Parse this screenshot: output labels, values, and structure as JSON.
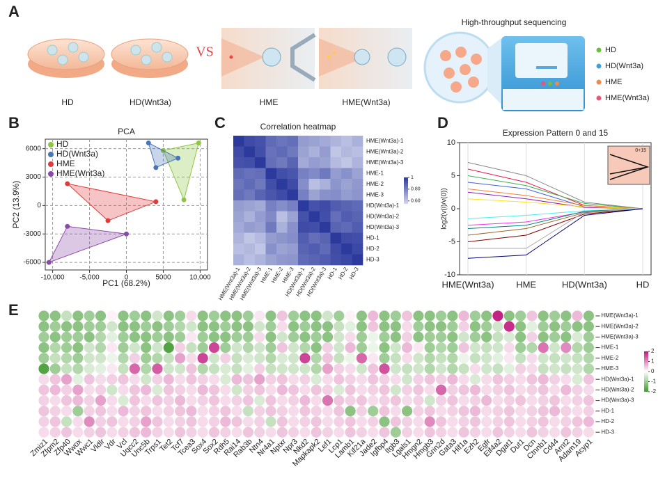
{
  "panel_labels": [
    "A",
    "B",
    "C",
    "D",
    "E"
  ],
  "schematic": {
    "groups": [
      "HD",
      "HD(Wnt3a)",
      "HME",
      "HME(Wnt3a)"
    ],
    "vs": "VS",
    "sequencing_title": "High-throughput sequencing",
    "legend": [
      {
        "name": "HD",
        "color": "#6cbf3a"
      },
      {
        "name": "HD(Wnt3a)",
        "color": "#3ea0d8"
      },
      {
        "name": "HME",
        "color": "#f08a4b"
      },
      {
        "name": "HME(Wnt3a)",
        "color": "#e8557a"
      }
    ]
  },
  "chart_data": [
    {
      "type": "scatter",
      "title": "PCA",
      "x_label": "PC1 (68.2%)",
      "y_label": "PC2 (13.9%)",
      "xlim": [
        -11000,
        11000
      ],
      "ylim": [
        -6800,
        7000
      ],
      "xticks": [
        {
          "value": -10000,
          "label": "-10,000"
        },
        {
          "value": -5000,
          "label": "-5,000"
        },
        0,
        5000,
        {
          "value": 10000,
          "label": "10,000"
        }
      ],
      "yticks": [
        -6000,
        -3000,
        0,
        3000,
        6000
      ],
      "grid": "dashed",
      "legend": "top-left",
      "series": [
        {
          "name": "HD",
          "color": "#8cc63f",
          "x": [
            5000,
            9800,
            7800
          ],
          "values": [
            5800,
            6600,
            600
          ]
        },
        {
          "name": "HD(Wnt3a)",
          "color": "#4a74b8",
          "x": [
            3000,
            7000,
            4000
          ],
          "values": [
            6600,
            5000,
            4000
          ]
        },
        {
          "name": "HME",
          "color": "#e03c3c",
          "x": [
            -8000,
            -2500,
            4000
          ],
          "values": [
            2300,
            -1600,
            400
          ]
        },
        {
          "name": "HME(Wnt3a)",
          "color": "#8a4aa8",
          "x": [
            -8000,
            -10500,
            0
          ],
          "values": [
            -2200,
            -6000,
            -3000
          ]
        }
      ]
    },
    {
      "type": "heatmap",
      "title": "Correlation heatmap",
      "categories": [
        "HME(Wnt3a)-1",
        "HME(Wnt3a)-2",
        "HME(Wnt3a)-3",
        "HME-1",
        "HME-2",
        "HME-3",
        "HD(Wnt3a)-1",
        "HD(Wnt3a)-2",
        "HD(Wnt3a)-3",
        "HD-1",
        "HD-2",
        "HD-3"
      ],
      "values": [
        [
          1,
          0.95,
          0.93,
          0.86,
          0.83,
          0.85,
          0.72,
          0.7,
          0.68,
          0.65,
          0.62,
          0.66
        ],
        [
          0.95,
          1,
          0.94,
          0.84,
          0.86,
          0.82,
          0.7,
          0.66,
          0.72,
          0.6,
          0.64,
          0.62
        ],
        [
          0.93,
          0.94,
          1,
          0.85,
          0.82,
          0.88,
          0.68,
          0.72,
          0.7,
          0.63,
          0.6,
          0.65
        ],
        [
          0.86,
          0.84,
          0.85,
          1,
          0.94,
          0.92,
          0.8,
          0.77,
          0.82,
          0.72,
          0.75,
          0.7
        ],
        [
          0.83,
          0.86,
          0.82,
          0.94,
          1,
          0.95,
          0.76,
          0.62,
          0.66,
          0.74,
          0.7,
          0.73
        ],
        [
          0.85,
          0.82,
          0.88,
          0.92,
          0.95,
          1,
          0.8,
          0.7,
          0.75,
          0.76,
          0.72,
          0.74
        ],
        [
          0.72,
          0.7,
          0.68,
          0.8,
          0.76,
          0.8,
          1,
          0.93,
          0.95,
          0.9,
          0.88,
          0.86
        ],
        [
          0.7,
          0.66,
          0.72,
          0.77,
          0.62,
          0.7,
          0.93,
          1,
          0.94,
          0.85,
          0.9,
          0.88
        ],
        [
          0.68,
          0.72,
          0.7,
          0.82,
          0.66,
          0.75,
          0.95,
          0.94,
          1,
          0.88,
          0.86,
          0.9
        ],
        [
          0.65,
          0.6,
          0.63,
          0.72,
          0.74,
          0.76,
          0.9,
          0.85,
          0.88,
          1,
          0.95,
          0.94
        ],
        [
          0.62,
          0.64,
          0.6,
          0.75,
          0.7,
          0.72,
          0.88,
          0.9,
          0.86,
          0.95,
          1,
          0.96
        ],
        [
          0.66,
          0.62,
          0.65,
          0.7,
          0.73,
          0.74,
          0.86,
          0.88,
          0.9,
          0.94,
          0.96,
          1
        ]
      ],
      "clim": [
        0.55,
        1
      ],
      "colorbar_ticks": [
        1,
        {
          "value": 0.8,
          "label": "0.80"
        },
        {
          "value": 0.6,
          "label": "0.60"
        }
      ],
      "colors": [
        "#d3d7ee",
        "#2c3a9e"
      ]
    },
    {
      "type": "line",
      "title": "Expression Pattern 0 and 15",
      "y_label": "log2(v(i)/v(0))",
      "categories": [
        "HME(Wnt3a)",
        "HME",
        "HD(Wnt3a)",
        "HD"
      ],
      "ylim": [
        -10,
        10
      ],
      "yticks": [
        -10,
        -5,
        0,
        5,
        10
      ],
      "inset_label": "0+15",
      "inset_color": "#f6c9b8",
      "series": [
        {
          "color": "#e6194b",
          "values": [
            6,
            4,
            0.5,
            0
          ]
        },
        {
          "color": "#3cb44b",
          "values": [
            5,
            3.5,
            0.8,
            0
          ]
        },
        {
          "color": "#4363d8",
          "values": [
            4,
            3,
            0.3,
            0
          ]
        },
        {
          "color": "#f58231",
          "values": [
            3,
            2,
            0.5,
            0
          ]
        },
        {
          "color": "#911eb4",
          "values": [
            2.5,
            1.5,
            0.2,
            0
          ]
        },
        {
          "color": "#888888",
          "values": [
            7,
            5,
            1,
            0
          ]
        },
        {
          "color": "#ffe119",
          "values": [
            1.5,
            1,
            0.3,
            0
          ]
        },
        {
          "color": "#46f0f0",
          "values": [
            -1.5,
            -1,
            -0.3,
            0
          ]
        },
        {
          "color": "#f032e6",
          "values": [
            -2.5,
            -2,
            -0.5,
            0
          ]
        },
        {
          "color": "#008080",
          "values": [
            -3,
            -2.5,
            -0.4,
            0
          ]
        },
        {
          "color": "#9a6324",
          "values": [
            -4,
            -3,
            -0.6,
            0
          ]
        },
        {
          "color": "#800000",
          "values": [
            -5,
            -4,
            -0.8,
            0
          ]
        },
        {
          "color": "#aaaaaa",
          "values": [
            -6,
            -6,
            -0.5,
            0
          ]
        },
        {
          "color": "#000075",
          "values": [
            -7.5,
            -7,
            -1,
            0
          ]
        }
      ]
    },
    {
      "type": "dot_heatmap",
      "categories": [
        "Zmiz1",
        "Zfpm2",
        "Zfp40",
        "Wwox",
        "Wwc1",
        "Vldlr",
        "Vdr",
        "Vcl",
        "Uqcc2",
        "Unc5b",
        "Trps1",
        "Tet2",
        "Tcf7",
        "Tcea3",
        "Sox4",
        "Sox2",
        "Rdh5",
        "Rai14",
        "Rab3b",
        "Ntn4",
        "Nr4a1",
        "Nptxr",
        "Npr3",
        "Nkd2",
        "Mapkapk2",
        "Lef1",
        "Lcp1",
        "Lamb1",
        "Kif21a",
        "Jade2",
        "Igfbp4",
        "Itgb3",
        "Lgals1",
        "Hmgn2",
        "Hmgb3",
        "Grin2d",
        "Gata3",
        "Hif1a",
        "Ezh2",
        "Egfr",
        "Eif4a2",
        "Dgat1",
        "Dut1",
        "Dcn",
        "Ctnnb1",
        "Cd44",
        "Arnt2",
        "Adam19",
        "Acyp1"
      ],
      "category_colors": [
        "#222",
        "#222",
        "#222",
        "#222",
        "#222",
        "#222",
        "#222",
        "#222",
        "#222",
        "#222",
        "#222",
        "#222",
        "#d62b3a",
        "#222",
        "#d62b3a",
        "#d62b3a",
        "#222",
        "#222",
        "#222",
        "#222",
        "#222",
        "#222",
        "#222",
        "#222",
        "#222",
        "#d62b3a",
        "#222",
        "#222",
        "#222",
        "#222",
        "#222",
        "#222",
        "#222",
        "#222",
        "#222",
        "#222",
        "#222",
        "#d62b3a",
        "#d62b3a",
        "#d62b3a",
        "#222",
        "#222",
        "#222",
        "#222",
        "#d62b3a",
        "#d62b3a",
        "#222",
        "#222",
        "#222"
      ],
      "rows": [
        "HME(Wnt3a)-1",
        "HME(Wnt3a)-2",
        "HME(Wnt3a)-3",
        "HME-1",
        "HME-2",
        "HME-3",
        "HD(Wnt3a)-1",
        "HD(Wnt3a)-2",
        "HD(Wnt3a)-3",
        "HD-1",
        "HD-2",
        "HD-3"
      ],
      "values": [
        [
          -1.2,
          -1.2,
          -0.6,
          -1.2,
          -1.0,
          -1.2,
          0.1,
          -1.2,
          -1.0,
          -1.2,
          -0.5,
          -1.2,
          -1.0,
          0.3,
          -1.2,
          -1.0,
          -1.2,
          -1.2,
          -1.0,
          0.2,
          -1.2,
          0.5,
          -1.0,
          -1.2,
          -1.2,
          -0.5,
          -1.0,
          0.1,
          -1.2,
          0.6,
          -1.2,
          -1.0,
          0.5,
          -1.2,
          -1.2,
          -1.0,
          -1.2,
          0.6,
          -1.0,
          -1.2,
          1.9,
          -1.2,
          -1.0,
          0.5,
          -1.2,
          -1.0,
          -1.2,
          0.6,
          -1.2
        ],
        [
          -1.2,
          -1.0,
          -1.2,
          -1.2,
          -1.0,
          -1.0,
          -0.5,
          -1.2,
          -1.2,
          -1.0,
          -1.2,
          -1.0,
          -0.8,
          -0.5,
          -1.2,
          -1.2,
          -1.0,
          -1.2,
          -1.2,
          -0.5,
          -1.0,
          0.3,
          -1.2,
          -1.0,
          -1.2,
          -1.2,
          -0.6,
          -0.3,
          -1.2,
          0.5,
          -1.2,
          -1.2,
          0.3,
          -1.0,
          -1.2,
          -1.2,
          -1.0,
          0.4,
          -1.2,
          -1.0,
          -0.5,
          1.8,
          -1.2,
          -0.3,
          -1.0,
          -1.2,
          -1.0,
          -1.2,
          -1.2
        ],
        [
          -1.0,
          -1.2,
          -1.0,
          -1.0,
          -1.2,
          -0.8,
          -0.3,
          -1.0,
          -1.2,
          -1.2,
          -1.0,
          -1.2,
          -1.0,
          0.2,
          -1.0,
          -1.2,
          -1.2,
          -1.0,
          -1.0,
          0.3,
          -1.2,
          -0.5,
          -1.0,
          -1.2,
          -1.0,
          -1.2,
          -0.5,
          0.3,
          -1.0,
          -0.2,
          -1.0,
          -1.2,
          0.4,
          -1.2,
          -1.0,
          -1.0,
          -1.2,
          -0.5,
          -1.0,
          -1.2,
          -0.6,
          -0.4,
          -1.2,
          0.4,
          -1.2,
          -1.0,
          -1.2,
          -0.4,
          -1.0
        ],
        [
          -1.2,
          -0.8,
          -1.0,
          -1.2,
          -0.5,
          -0.8,
          0.2,
          -1.0,
          -0.5,
          -1.2,
          -0.5,
          -1.8,
          0.4,
          -0.6,
          -1.0,
          1.6,
          -1.0,
          -0.5,
          -0.8,
          -0.5,
          -1.0,
          0.5,
          -0.5,
          -0.8,
          -1.2,
          0.4,
          -0.5,
          0.6,
          -1.0,
          -0.2,
          -1.2,
          -0.5,
          0.6,
          0.2,
          -1.0,
          -0.8,
          -1.0,
          0.5,
          -0.5,
          -0.6,
          -0.5,
          0.3,
          -1.0,
          -0.8,
          1.2,
          -0.5,
          1.0,
          -0.8,
          -1.0
        ],
        [
          -1.0,
          -0.6,
          -0.8,
          -1.0,
          -0.5,
          -0.5,
          -0.2,
          -0.8,
          0.4,
          -1.0,
          -0.8,
          -0.6,
          0.8,
          0.3,
          1.6,
          -0.5,
          0.4,
          -0.6,
          -0.4,
          -0.5,
          -0.8,
          -0.4,
          -0.5,
          1.6,
          -0.8,
          0.5,
          -0.6,
          -0.2,
          1.3,
          0.2,
          -1.0,
          -0.6,
          0.3,
          -0.5,
          -0.8,
          -0.6,
          -0.8,
          -0.2,
          -0.6,
          -0.5,
          -0.3,
          0.2,
          -0.6,
          0.3,
          -0.5,
          -0.6,
          -0.5,
          -0.6,
          -0.8
        ],
        [
          -1.8,
          -1.0,
          -0.6,
          -0.8,
          -0.4,
          -0.3,
          0.2,
          -0.6,
          1.3,
          -0.8,
          1.4,
          -0.5,
          -0.5,
          0.5,
          -0.8,
          -0.6,
          -0.4,
          -0.6,
          -0.3,
          0.4,
          -0.6,
          -0.5,
          -0.5,
          -0.5,
          -0.8,
          0.8,
          0.4,
          0.3,
          -0.5,
          0.5,
          1.5,
          -0.5,
          -0.6,
          -0.5,
          -0.8,
          -0.5,
          -0.8,
          -0.6,
          0.3,
          -0.5,
          -0.6,
          -0.3,
          0.4,
          0.3,
          -0.6,
          -0.5,
          -0.6,
          -0.5,
          -0.8
        ],
        [
          0.3,
          0.5,
          0.8,
          -0.3,
          0.5,
          0.3,
          0.4,
          0.5,
          0.3,
          -0.5,
          0.4,
          0.6,
          0.3,
          0.5,
          0.4,
          0.3,
          -0.4,
          0.6,
          0.5,
          0.8,
          0.4,
          0.5,
          0.3,
          0.4,
          -0.4,
          0.3,
          0.5,
          0.4,
          0.3,
          0.5,
          0.4,
          0.3,
          -0.5,
          0.4,
          0.5,
          0.4,
          0.6,
          0.3,
          -0.4,
          0.3,
          0.5,
          0.4,
          0.3,
          0.5,
          0.6,
          0.4,
          0.3,
          -0.4,
          0.5
        ],
        [
          0.5,
          0.6,
          0.4,
          0.8,
          0.3,
          0.4,
          -0.5,
          0.3,
          0.5,
          0.6,
          -0.4,
          0.5,
          0.4,
          0.3,
          0.6,
          0.5,
          0.3,
          -0.5,
          0.4,
          0.5,
          0.3,
          0.6,
          0.5,
          0.3,
          0.5,
          0.4,
          -0.4,
          0.5,
          0.3,
          0.4,
          0.5,
          -0.5,
          0.4,
          0.5,
          0.3,
          1.3,
          0.4,
          0.5,
          0.6,
          0.3,
          0.4,
          0.5,
          0.3,
          0.4,
          0.5,
          0.3,
          0.6,
          0.4,
          0.3
        ],
        [
          0.4,
          0.3,
          0.5,
          0.6,
          0.4,
          0.8,
          0.3,
          -0.4,
          0.5,
          0.3,
          0.5,
          0.4,
          0.6,
          0.3,
          0.4,
          0.5,
          0.3,
          0.4,
          0.5,
          -0.4,
          0.5,
          0.3,
          0.4,
          0.6,
          0.3,
          1.2,
          0.5,
          0.4,
          0.5,
          0.3,
          0.4,
          0.5,
          0.3,
          0.4,
          -0.5,
          0.4,
          0.5,
          0.3,
          0.4,
          0.6,
          0.3,
          0.4,
          0.5,
          0.3,
          0.4,
          0.5,
          0.3,
          0.4,
          0.5
        ],
        [
          0.5,
          0.4,
          0.3,
          -1.0,
          0.4,
          0.5,
          0.3,
          0.6,
          0.4,
          0.5,
          0.3,
          0.4,
          0.5,
          0.6,
          0.3,
          0.4,
          0.5,
          0.3,
          -0.6,
          0.4,
          0.5,
          0.4,
          0.3,
          0.5,
          0.4,
          0.3,
          0.5,
          -1.2,
          0.4,
          -1.0,
          0.5,
          0.3,
          -1.2,
          0.4,
          0.5,
          0.3,
          0.4,
          0.5,
          0.6,
          0.3,
          0.4,
          0.5,
          0.3,
          0.4,
          0.5,
          0.6,
          0.4,
          0.3,
          0.4
        ],
        [
          0.4,
          0.5,
          -0.6,
          0.3,
          1.0,
          0.4,
          0.5,
          0.3,
          0.4,
          0.8,
          0.5,
          0.3,
          0.4,
          0.5,
          0.3,
          0.4,
          0.6,
          0.5,
          0.3,
          0.4,
          -0.6,
          0.5,
          0.3,
          0.4,
          0.5,
          0.3,
          0.4,
          0.5,
          0.3,
          0.4,
          -1.2,
          0.5,
          0.4,
          0.3,
          1.0,
          0.5,
          0.3,
          0.4,
          0.5,
          0.3,
          0.4,
          0.5,
          0.3,
          0.4,
          0.5,
          0.3,
          0.4,
          0.5,
          0.6
        ],
        [
          0.3,
          0.4,
          0.5,
          0.3,
          0.4,
          0.5,
          0.3,
          0.4,
          0.5,
          0.6,
          0.4,
          0.3,
          0.5,
          0.4,
          0.3,
          0.5,
          0.4,
          0.3,
          0.5,
          0.4,
          0.3,
          0.5,
          0.4,
          0.3,
          0.5,
          0.4,
          0.3,
          0.5,
          0.4,
          0.3,
          0.5,
          -1.0,
          0.4,
          0.3,
          0.5,
          0.4,
          0.3,
          0.5,
          0.4,
          0.3,
          0.5,
          0.4,
          0.3,
          0.5,
          0.4,
          0.3,
          0.5,
          0.4,
          0.3
        ]
      ],
      "clim": [
        -2,
        2
      ],
      "colorbar_ticks": [
        2,
        1,
        0,
        -1,
        -2
      ],
      "colors": [
        "#3f9a2e",
        "#ffffff",
        "#c0177c"
      ]
    }
  ]
}
